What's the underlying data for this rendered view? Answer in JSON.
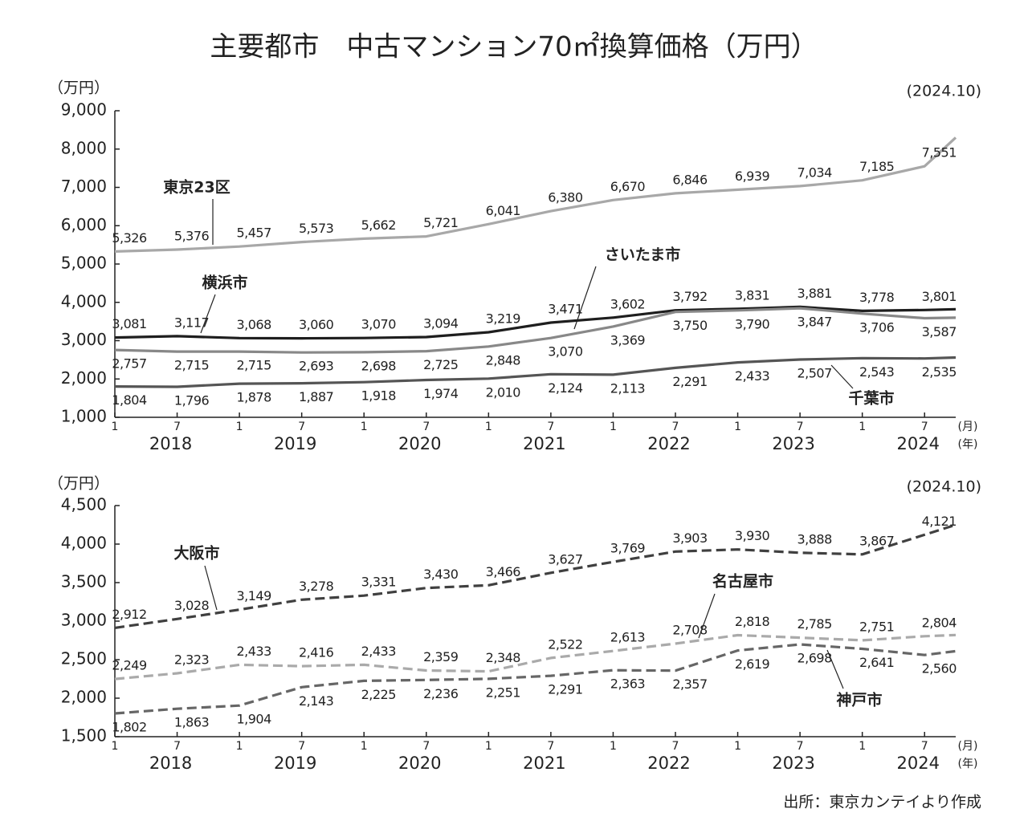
{
  "title": "主要都市　中古マンション70㎡換算価格（万円）",
  "source": "出所：東京カンテイより作成",
  "chart_data": [
    {
      "type": "line",
      "ylabel": "（万円）",
      "note": "(2024.10)",
      "x": [
        "2018-01",
        "2018-07",
        "2019-01",
        "2019-07",
        "2020-01",
        "2020-07",
        "2021-01",
        "2021-07",
        "2022-01",
        "2022-07",
        "2023-01",
        "2023-07",
        "2024-01",
        "2024-07",
        "2024-10"
      ],
      "xlim": [
        "2018-01",
        "2024-10"
      ],
      "xticks": [
        {
          "value": "2018-01",
          "label": "1"
        },
        {
          "value": "2018-07",
          "label": "7"
        },
        {
          "value": "2019-01",
          "label": "1"
        },
        {
          "value": "2019-07",
          "label": "7"
        },
        {
          "value": "2020-01",
          "label": "1"
        },
        {
          "value": "2020-07",
          "label": "7"
        },
        {
          "value": "2021-01",
          "label": "1"
        },
        {
          "value": "2021-07",
          "label": "7"
        },
        {
          "value": "2022-01",
          "label": "1"
        },
        {
          "value": "2022-07",
          "label": "7"
        },
        {
          "value": "2023-01",
          "label": "1"
        },
        {
          "value": "2023-07",
          "label": "7"
        },
        {
          "value": "2024-01",
          "label": "1"
        },
        {
          "value": "2024-07",
          "label": "7"
        }
      ],
      "years": [
        {
          "value": "2018-07",
          "label": "2018"
        },
        {
          "value": "2019-07",
          "label": "2019"
        },
        {
          "value": "2020-07",
          "label": "2020"
        },
        {
          "value": "2021-07",
          "label": "2021"
        },
        {
          "value": "2022-07",
          "label": "2022"
        },
        {
          "value": "2023-07",
          "label": "2023"
        },
        {
          "value": "2024-07",
          "label": "2024"
        }
      ],
      "month_unit": "(月)",
      "year_unit": "(年)",
      "ylim": [
        1000,
        9000
      ],
      "yticks": [
        {
          "value": 1000,
          "label": "1,000"
        },
        {
          "value": 2000,
          "label": "2,000"
        },
        {
          "value": 3000,
          "label": "3,000"
        },
        {
          "value": 4000,
          "label": "4,000"
        },
        {
          "value": 5000,
          "label": "5,000"
        },
        {
          "value": 6000,
          "label": "6,000"
        },
        {
          "value": 7000,
          "label": "7,000"
        },
        {
          "value": 8000,
          "label": "8,000"
        },
        {
          "value": 9000,
          "label": "9,000"
        }
      ],
      "series": [
        {
          "name": "東京23区",
          "color": "#a8a8a8",
          "style": "solid",
          "values": [
            5326,
            5376,
            5457,
            5573,
            5662,
            5721,
            6041,
            6380,
            6670,
            6846,
            6939,
            7034,
            7185,
            7551,
            8300
          ],
          "value_labels": [
            "5,326",
            "5,376",
            "5,457",
            "5,573",
            "5,662",
            "5,721",
            "6,041",
            "6,380",
            "6,670",
            "6,846",
            "6,939",
            "7,034",
            "7,185",
            "7,551",
            null
          ]
        },
        {
          "name": "横浜市",
          "color": "#1e1e1e",
          "style": "solid",
          "values": [
            3081,
            3117,
            3068,
            3060,
            3070,
            3094,
            3219,
            3471,
            3602,
            3792,
            3831,
            3881,
            3778,
            3801,
            3820
          ],
          "value_labels": [
            "3,081",
            "3,117",
            "3,068",
            "3,060",
            "3,070",
            "3,094",
            "3,219",
            "3,471",
            "3,602",
            "3,792",
            "3,831",
            "3,881",
            "3,778",
            "3,801",
            null
          ]
        },
        {
          "name": "さいたま市",
          "color": "#888888",
          "style": "solid",
          "values": [
            2757,
            2715,
            2715,
            2693,
            2698,
            2725,
            2848,
            3070,
            3369,
            3750,
            3790,
            3847,
            3706,
            3587,
            3600
          ],
          "value_labels": [
            "2,757",
            "2,715",
            "2,715",
            "2,693",
            "2,698",
            "2,725",
            "2,848",
            "3,070",
            "3,369",
            "3,750",
            "3,790",
            "3,847",
            "3,706",
            "3,587",
            null
          ]
        },
        {
          "name": "千葉市",
          "color": "#555555",
          "style": "solid",
          "values": [
            1804,
            1796,
            1878,
            1887,
            1918,
            1974,
            2010,
            2124,
            2113,
            2291,
            2433,
            2507,
            2543,
            2535,
            2560
          ],
          "value_labels": [
            "1,804",
            "1,796",
            "1,878",
            "1,887",
            "1,918",
            "1,974",
            "2,010",
            "2,124",
            "2,113",
            "2,291",
            "2,433",
            "2,507",
            "2,543",
            "2,535",
            null
          ]
        }
      ]
    },
    {
      "type": "line",
      "ylabel": "（万円）",
      "note": "(2024.10)",
      "x": [
        "2018-01",
        "2018-07",
        "2019-01",
        "2019-07",
        "2020-01",
        "2020-07",
        "2021-01",
        "2021-07",
        "2022-01",
        "2022-07",
        "2023-01",
        "2023-07",
        "2024-01",
        "2024-07",
        "2024-10"
      ],
      "xlim": [
        "2018-01",
        "2024-10"
      ],
      "xticks": [
        {
          "value": "2018-01",
          "label": "1"
        },
        {
          "value": "2018-07",
          "label": "7"
        },
        {
          "value": "2019-01",
          "label": "1"
        },
        {
          "value": "2019-07",
          "label": "7"
        },
        {
          "value": "2020-01",
          "label": "1"
        },
        {
          "value": "2020-07",
          "label": "7"
        },
        {
          "value": "2021-01",
          "label": "1"
        },
        {
          "value": "2021-07",
          "label": "7"
        },
        {
          "value": "2022-01",
          "label": "1"
        },
        {
          "value": "2022-07",
          "label": "7"
        },
        {
          "value": "2023-01",
          "label": "1"
        },
        {
          "value": "2023-07",
          "label": "7"
        },
        {
          "value": "2024-01",
          "label": "1"
        },
        {
          "value": "2024-07",
          "label": "7"
        }
      ],
      "years": [
        {
          "value": "2018-07",
          "label": "2018"
        },
        {
          "value": "2019-07",
          "label": "2019"
        },
        {
          "value": "2020-07",
          "label": "2020"
        },
        {
          "value": "2021-07",
          "label": "2021"
        },
        {
          "value": "2022-07",
          "label": "2022"
        },
        {
          "value": "2023-07",
          "label": "2023"
        },
        {
          "value": "2024-07",
          "label": "2024"
        }
      ],
      "month_unit": "(月)",
      "year_unit": "(年)",
      "ylim": [
        1500,
        4500
      ],
      "yticks": [
        {
          "value": 1500,
          "label": "1,500"
        },
        {
          "value": 2000,
          "label": "2,000"
        },
        {
          "value": 2500,
          "label": "2,500"
        },
        {
          "value": 3000,
          "label": "3,000"
        },
        {
          "value": 3500,
          "label": "3,500"
        },
        {
          "value": 4000,
          "label": "4,000"
        },
        {
          "value": 4500,
          "label": "4,500"
        }
      ],
      "series": [
        {
          "name": "大阪市",
          "color": "#404040",
          "style": "dashed",
          "values": [
            2912,
            3028,
            3149,
            3278,
            3331,
            3430,
            3466,
            3627,
            3769,
            3903,
            3930,
            3888,
            3867,
            4121,
            4250
          ],
          "value_labels": [
            "2,912",
            "3,028",
            "3,149",
            "3,278",
            "3,331",
            "3,430",
            "3,466",
            "3,627",
            "3,769",
            "3,903",
            "3,930",
            "3,888",
            "3,867",
            "4,121",
            null
          ]
        },
        {
          "name": "名古屋市",
          "color": "#aaaaaa",
          "style": "dashed",
          "values": [
            2249,
            2323,
            2433,
            2416,
            2433,
            2359,
            2348,
            2522,
            2613,
            2708,
            2818,
            2785,
            2751,
            2804,
            2820
          ],
          "value_labels": [
            "2,249",
            "2,323",
            "2,433",
            "2,416",
            "2,433",
            "2,359",
            "2,348",
            "2,522",
            "2,613",
            "2,708",
            "2,818",
            "2,785",
            "2,751",
            "2,804",
            null
          ]
        },
        {
          "name": "神戸市",
          "color": "#666666",
          "style": "dashed",
          "values": [
            1802,
            1863,
            1904,
            2143,
            2225,
            2236,
            2251,
            2291,
            2363,
            2357,
            2619,
            2698,
            2641,
            2560,
            2610
          ],
          "value_labels": [
            "1,802",
            "1,863",
            "1,904",
            "2,143",
            "2,225",
            "2,236",
            "2,251",
            "2,291",
            "2,363",
            "2,357",
            "2,619",
            "2,698",
            "2,641",
            "2,560",
            null
          ]
        }
      ]
    }
  ]
}
